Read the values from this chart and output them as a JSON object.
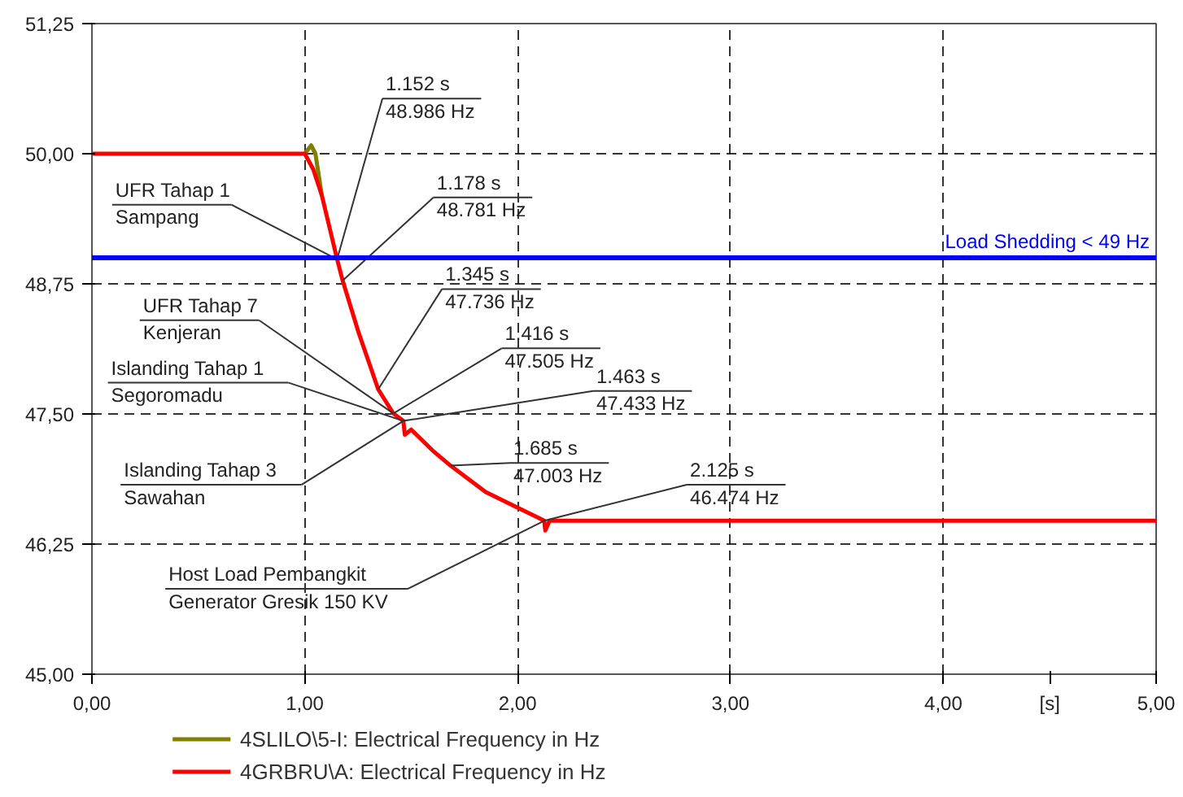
{
  "chart_data": {
    "type": "line",
    "xlabel": "[s]",
    "xlim": [
      0,
      5
    ],
    "ylim": [
      45,
      51.25
    ],
    "xticks": [
      {
        "value": 0,
        "label": "0,00"
      },
      {
        "value": 1,
        "label": "1,00"
      },
      {
        "value": 2,
        "label": "2,00"
      },
      {
        "value": 3,
        "label": "3,00"
      },
      {
        "value": 4,
        "label": "4,00"
      },
      {
        "value": 5,
        "label": "5,00"
      }
    ],
    "yticks": [
      {
        "value": 45,
        "label": "45,00"
      },
      {
        "value": 46.25,
        "label": "46,25"
      },
      {
        "value": 47.5,
        "label": "47,50"
      },
      {
        "value": 48.75,
        "label": "48,75"
      },
      {
        "value": 50,
        "label": "50,00"
      },
      {
        "value": 51.25,
        "label": "51,25"
      }
    ],
    "grid": true,
    "legend": "bottom",
    "line_style": "solid",
    "marker": "none",
    "series": [
      {
        "name": "4SLILO\\5-I: Electrical Frequency in Hz",
        "color": "#808000",
        "x": [
          1.0,
          1.03,
          1.05,
          1.08
        ],
        "values": [
          50,
          50.08,
          50.0,
          49.6
        ]
      },
      {
        "name": "4GRBRU\\A: Electrical Frequency in Hz",
        "color": "#ff0000",
        "x": [
          0,
          1.0,
          1.04,
          1.08,
          1.152,
          1.178,
          1.25,
          1.345,
          1.416,
          1.463,
          1.47,
          1.5,
          1.6,
          1.685,
          1.85,
          2.0,
          2.1,
          2.125,
          2.13,
          2.15,
          5.0
        ],
        "values": [
          50,
          50,
          49.85,
          49.6,
          48.986,
          48.781,
          48.3,
          47.736,
          47.505,
          47.433,
          47.3,
          47.35,
          47.15,
          47.003,
          46.75,
          46.6,
          46.5,
          46.474,
          46.38,
          46.474,
          46.474
        ]
      }
    ],
    "ref_lines": [
      {
        "axis": "y",
        "value": 49,
        "label": "Load Shedding < 49 Hz",
        "color": "#0000ff"
      }
    ],
    "annotations": [
      {
        "text": "1.152 s\n48.986 Hz",
        "x": 1.152,
        "y": 48.986
      },
      {
        "text": "1.178 s\n48.781 Hz",
        "x": 1.178,
        "y": 48.781
      },
      {
        "text": "1.345 s\n47.736 Hz",
        "x": 1.345,
        "y": 47.736
      },
      {
        "text": "1.416 s\n47.505 Hz",
        "x": 1.416,
        "y": 47.505
      },
      {
        "text": "1.463 s\n47.433 Hz",
        "x": 1.463,
        "y": 47.433
      },
      {
        "text": "1.685 s\n47.003 Hz",
        "x": 1.685,
        "y": 47.003
      },
      {
        "text": "2.125 s\n46.474 Hz",
        "x": 2.125,
        "y": 46.474
      },
      {
        "text": "UFR Tahap 1\nSampang",
        "x": 1.152,
        "y": 48.986
      },
      {
        "text": "UFR Tahap 7\nKenjeran",
        "x": 1.416,
        "y": 47.505
      },
      {
        "text": "Islanding Tahap 1\nSegoromadu",
        "x": 1.463,
        "y": 47.433
      },
      {
        "text": "Islanding Tahap 3\nSawahan",
        "x": 1.463,
        "y": 47.433
      },
      {
        "text": "Host Load Pembangkit\nGenerator Gresik 150 KV",
        "x": 2.125,
        "y": 46.474
      }
    ]
  }
}
